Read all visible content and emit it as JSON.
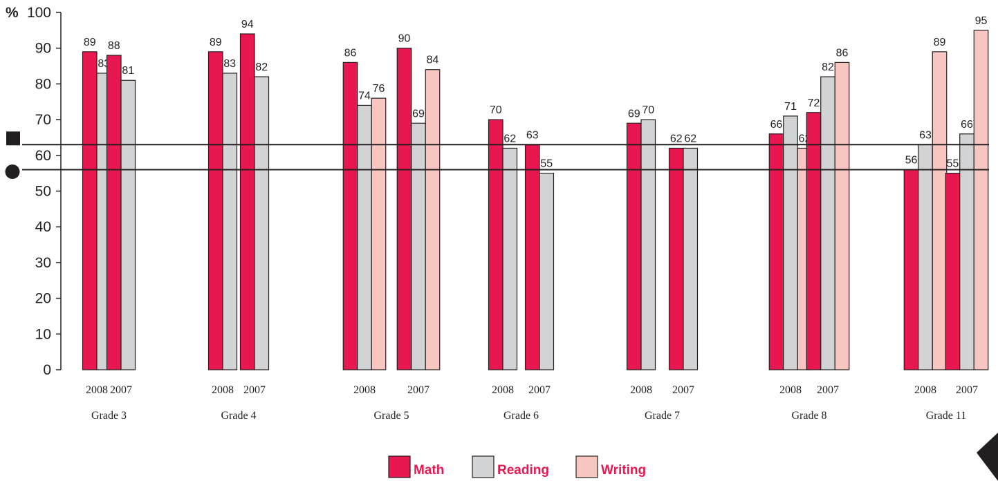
{
  "chart_data": {
    "type": "bar",
    "y_unit_label": "%",
    "ylim": [
      0,
      100
    ],
    "yticks": [
      0,
      10,
      20,
      30,
      40,
      50,
      60,
      70,
      80,
      90,
      100
    ],
    "grid": false,
    "legend_position": "bottom-center",
    "legend": [
      {
        "name": "Math",
        "color": "#e8174f"
      },
      {
        "name": "Reading",
        "color": "#d1d3d4"
      },
      {
        "name": "Writing",
        "color": "#f8c6c0"
      }
    ],
    "reference_lines": [
      {
        "marker": "square",
        "value": 63
      },
      {
        "marker": "circle",
        "value": 56
      }
    ],
    "grades": [
      {
        "label": "Grade 3",
        "years": [
          {
            "year": "2008",
            "bars": [
              {
                "series": "Math",
                "value": 89
              },
              {
                "series": "Reading",
                "value": 83
              }
            ]
          },
          {
            "year": "2007",
            "bars": [
              {
                "series": "Math",
                "value": 88
              },
              {
                "series": "Reading",
                "value": 81
              }
            ]
          }
        ]
      },
      {
        "label": "Grade 4",
        "years": [
          {
            "year": "2008",
            "bars": [
              {
                "series": "Math",
                "value": 89
              },
              {
                "series": "Reading",
                "value": 83
              }
            ]
          },
          {
            "year": "2007",
            "bars": [
              {
                "series": "Math",
                "value": 94
              },
              {
                "series": "Reading",
                "value": 82
              }
            ]
          }
        ]
      },
      {
        "label": "Grade 5",
        "years": [
          {
            "year": "2008",
            "bars": [
              {
                "series": "Math",
                "value": 86
              },
              {
                "series": "Reading",
                "value": 74
              },
              {
                "series": "Writing",
                "value": 76
              }
            ]
          },
          {
            "year": "2007",
            "bars": [
              {
                "series": "Math",
                "value": 90
              },
              {
                "series": "Reading",
                "value": 69
              },
              {
                "series": "Writing",
                "value": 84
              }
            ]
          }
        ]
      },
      {
        "label": "Grade 6",
        "years": [
          {
            "year": "2008",
            "bars": [
              {
                "series": "Math",
                "value": 70
              },
              {
                "series": "Reading",
                "value": 62
              }
            ]
          },
          {
            "year": "2007",
            "bars": [
              {
                "series": "Math",
                "value": 63
              },
              {
                "series": "Reading",
                "value": 55
              }
            ]
          }
        ]
      },
      {
        "label": "Grade 7",
        "years": [
          {
            "year": "2008",
            "bars": [
              {
                "series": "Math",
                "value": 69
              },
              {
                "series": "Reading",
                "value": 70
              }
            ]
          },
          {
            "year": "2007",
            "bars": [
              {
                "series": "Math",
                "value": 62
              },
              {
                "series": "Reading",
                "value": 62
              }
            ]
          }
        ]
      },
      {
        "label": "Grade 8",
        "years": [
          {
            "year": "2008",
            "bars": [
              {
                "series": "Math",
                "value": 66
              },
              {
                "series": "Reading",
                "value": 71
              },
              {
                "series": "Writing",
                "value": 62
              }
            ]
          },
          {
            "year": "2007",
            "bars": [
              {
                "series": "Math",
                "value": 72
              },
              {
                "series": "Reading",
                "value": 82
              },
              {
                "series": "Writing",
                "value": 86
              }
            ]
          }
        ]
      },
      {
        "label": "Grade 11",
        "years": [
          {
            "year": "2008",
            "bars": [
              {
                "series": "Math",
                "value": 56
              },
              {
                "series": "Reading",
                "value": 63
              },
              {
                "series": "Writing",
                "value": 89
              }
            ]
          },
          {
            "year": "2007",
            "bars": [
              {
                "series": "Math",
                "value": 55
              },
              {
                "series": "Reading",
                "value": 66
              },
              {
                "series": "Writing",
                "value": 95
              }
            ]
          }
        ]
      }
    ]
  }
}
